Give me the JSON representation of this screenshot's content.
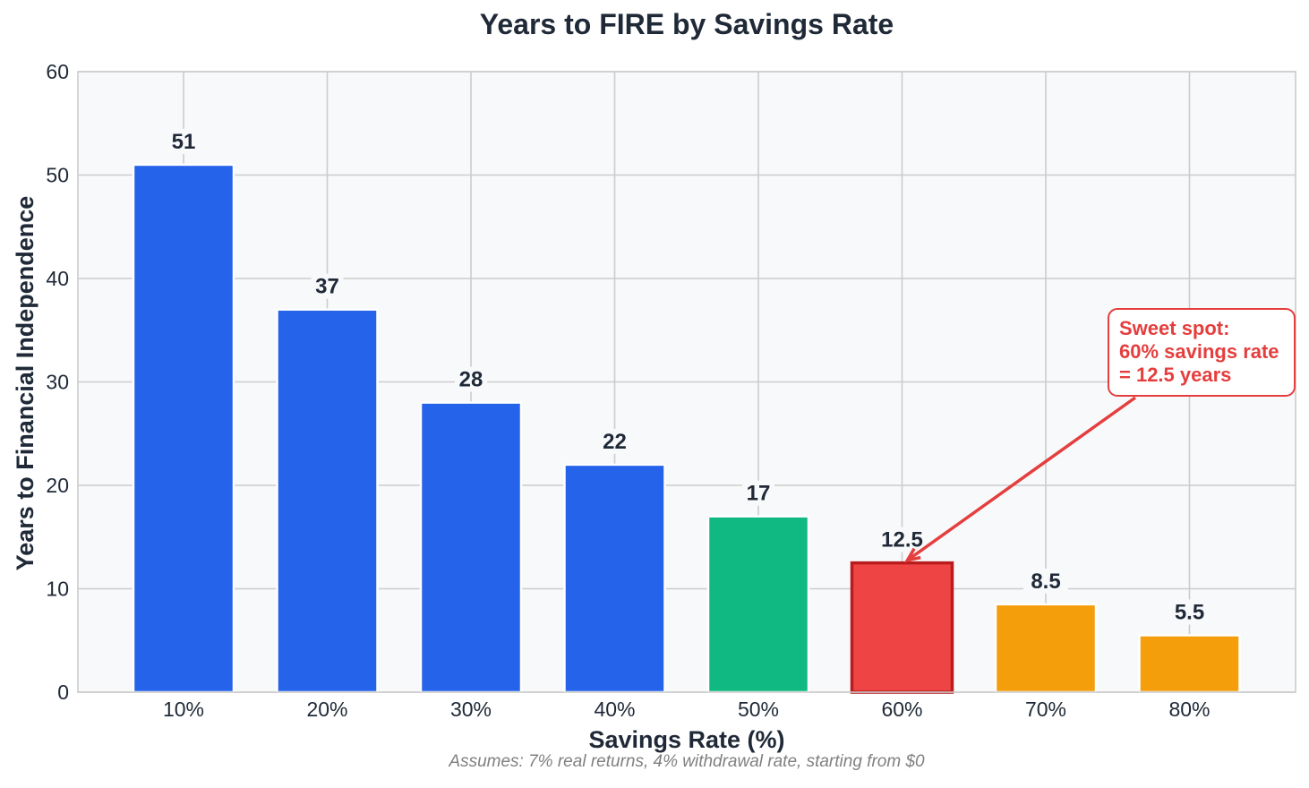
{
  "chart_data": {
    "type": "bar",
    "title": "Years to FIRE by Savings Rate",
    "xlabel": "Savings Rate (%)",
    "ylabel": "Years to Financial Independence",
    "categories": [
      "10%",
      "20%",
      "30%",
      "40%",
      "50%",
      "60%",
      "70%",
      "80%"
    ],
    "values": [
      51,
      37,
      28,
      22,
      17,
      12.5,
      8.5,
      5.5
    ],
    "value_labels": [
      "51",
      "37",
      "28",
      "22",
      "17",
      "12.5",
      "8.5",
      "5.5"
    ],
    "bar_colors": [
      "#2563eb",
      "#2563eb",
      "#2563eb",
      "#2563eb",
      "#10b981",
      "#ef4444",
      "#f59e0b",
      "#f59e0b"
    ],
    "highlight": {
      "category": "60%",
      "edge_color": "#b91c1c"
    },
    "ylim": [
      0,
      60
    ],
    "yticks": [
      0,
      10,
      20,
      30,
      40,
      50,
      60
    ],
    "grid": true,
    "plot_background": "#f8f9fb",
    "annotation": {
      "lines": [
        "Sweet spot:",
        "60% savings rate",
        "= 12.5 years"
      ],
      "color": "#e53e3e",
      "target_category": "60%",
      "target_value": 12.5
    },
    "footnote": "Assumes: 7% real returns, 4% withdrawal rate, starting from $0"
  }
}
